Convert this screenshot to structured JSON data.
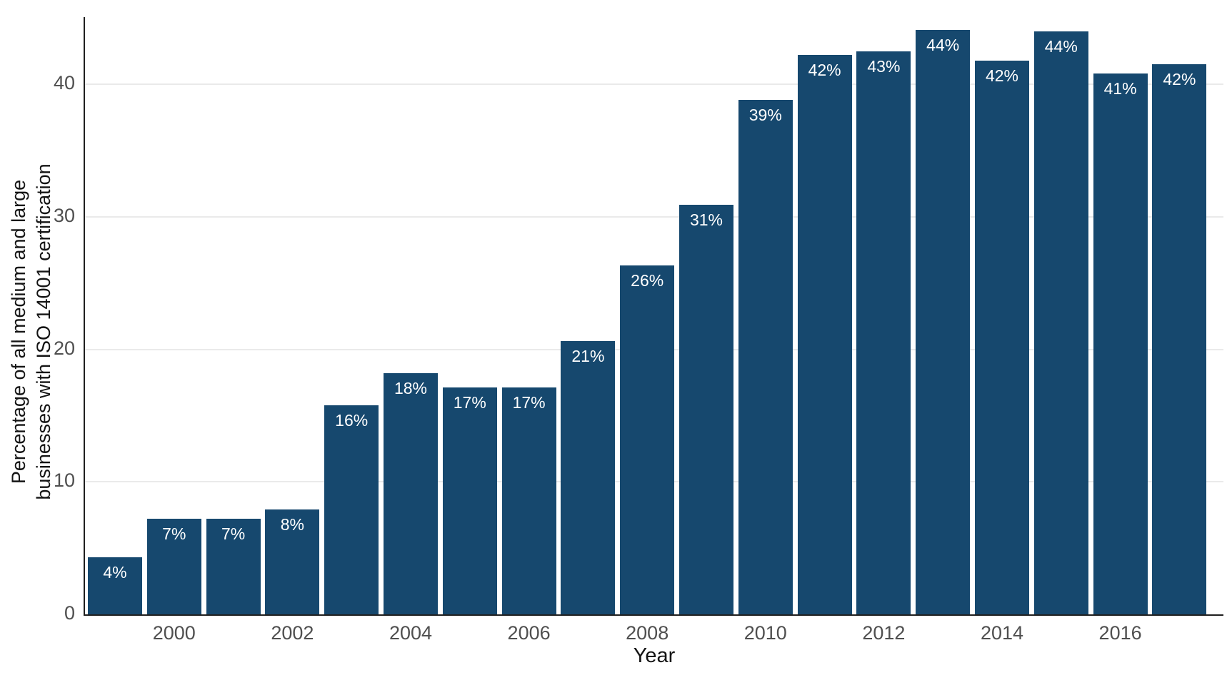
{
  "figure": {
    "x_axis_title": "Year",
    "y_axis_title": "Percentage of all medium and large\nbusinesses with ISO 14001 certification"
  },
  "chart_data": {
    "type": "bar",
    "title": "",
    "xlabel": "Year",
    "ylabel": "Percentage of all medium and large businesses with ISO 14001 certification",
    "categories": [
      1999,
      2000,
      2001,
      2002,
      2003,
      2004,
      2005,
      2006,
      2007,
      2008,
      2009,
      2010,
      2011,
      2012,
      2013,
      2014,
      2015,
      2016,
      2017
    ],
    "values": [
      4,
      7,
      7,
      8,
      16,
      18,
      17,
      17,
      21,
      26,
      31,
      39,
      42,
      43,
      44,
      42,
      44,
      41,
      42
    ],
    "bar_labels": [
      "4%",
      "7%",
      "7%",
      "8%",
      "16%",
      "18%",
      "17%",
      "17%",
      "21%",
      "26%",
      "31%",
      "39%",
      "42%",
      "43%",
      "44%",
      "42%",
      "44%",
      "41%",
      "42%"
    ],
    "values_measured": [
      4.3,
      7.2,
      7.2,
      7.9,
      15.8,
      18.2,
      17.1,
      17.1,
      20.6,
      26.3,
      30.9,
      38.8,
      42.2,
      42.5,
      44.1,
      41.8,
      44.0,
      40.8,
      41.5
    ],
    "x_tick_labels": [
      "2000",
      "2002",
      "2004",
      "2006",
      "2008",
      "2010",
      "2012",
      "2014",
      "2016"
    ],
    "y_tick_values": [
      0,
      10,
      20,
      30,
      40
    ],
    "ylim": [
      0,
      45
    ],
    "grid": "horizontal-only",
    "legend": "none",
    "bar_color": "#16486e",
    "value_label_color": "#ffffff",
    "tick_label_color": "#4f4f4f",
    "axis_title_color": "#141414",
    "axis_line_color": "#1f1f1f",
    "grid_color": "#eaeaea",
    "background_color": "#ffffff"
  }
}
